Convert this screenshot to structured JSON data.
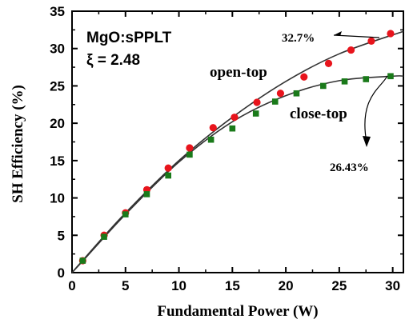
{
  "chart_data": {
    "type": "scatter",
    "xlabel": "Fundamental Power  (W)",
    "ylabel": "SH Efficiency (%)",
    "xlim": [
      0,
      31
    ],
    "ylim": [
      0,
      35
    ],
    "xticks": [
      0,
      5,
      10,
      15,
      20,
      25,
      30
    ],
    "yticks": [
      0,
      5,
      10,
      15,
      20,
      25,
      30,
      35
    ],
    "annotations": {
      "material": "MgO:sPPLT",
      "xi": "ξ = 2.48"
    },
    "series": [
      {
        "name": "open-top",
        "marker": "circle",
        "color": "#e8141c",
        "x": [
          1,
          3,
          5,
          7,
          9,
          11,
          13.2,
          15.2,
          17.3,
          19.5,
          21.7,
          24,
          26.1,
          28,
          29.8
        ],
        "y": [
          1.6,
          5.0,
          8.0,
          11.1,
          14.0,
          16.7,
          19.4,
          20.8,
          22.8,
          24.0,
          26.2,
          28.0,
          29.8,
          31.0,
          32.0
        ],
        "end_label": "32.7%",
        "fit_curve": [
          [
            0,
            0
          ],
          [
            1,
            1.65
          ],
          [
            5,
            8.0
          ],
          [
            10,
            15.0
          ],
          [
            15,
            20.8
          ],
          [
            20,
            25.6
          ],
          [
            25,
            29.3
          ],
          [
            31,
            32.3
          ]
        ]
      },
      {
        "name": "close-top",
        "marker": "square",
        "color": "#1a7a1a",
        "x": [
          1,
          3,
          5,
          7,
          9,
          11,
          13,
          15,
          17.2,
          19,
          21,
          23.5,
          25.5,
          27.5,
          29.8
        ],
        "y": [
          1.6,
          4.8,
          7.8,
          10.5,
          13.0,
          15.8,
          17.8,
          19.3,
          21.3,
          22.9,
          24.0,
          25.0,
          25.6,
          25.9,
          26.3
        ],
        "end_label": "26.43%",
        "fit_curve": [
          [
            0,
            0
          ],
          [
            1,
            1.55
          ],
          [
            5,
            7.8
          ],
          [
            10,
            14.8
          ],
          [
            15,
            20.2
          ],
          [
            20,
            23.7
          ],
          [
            25,
            25.7
          ],
          [
            30,
            26.3
          ],
          [
            31,
            26.3
          ]
        ]
      }
    ]
  }
}
